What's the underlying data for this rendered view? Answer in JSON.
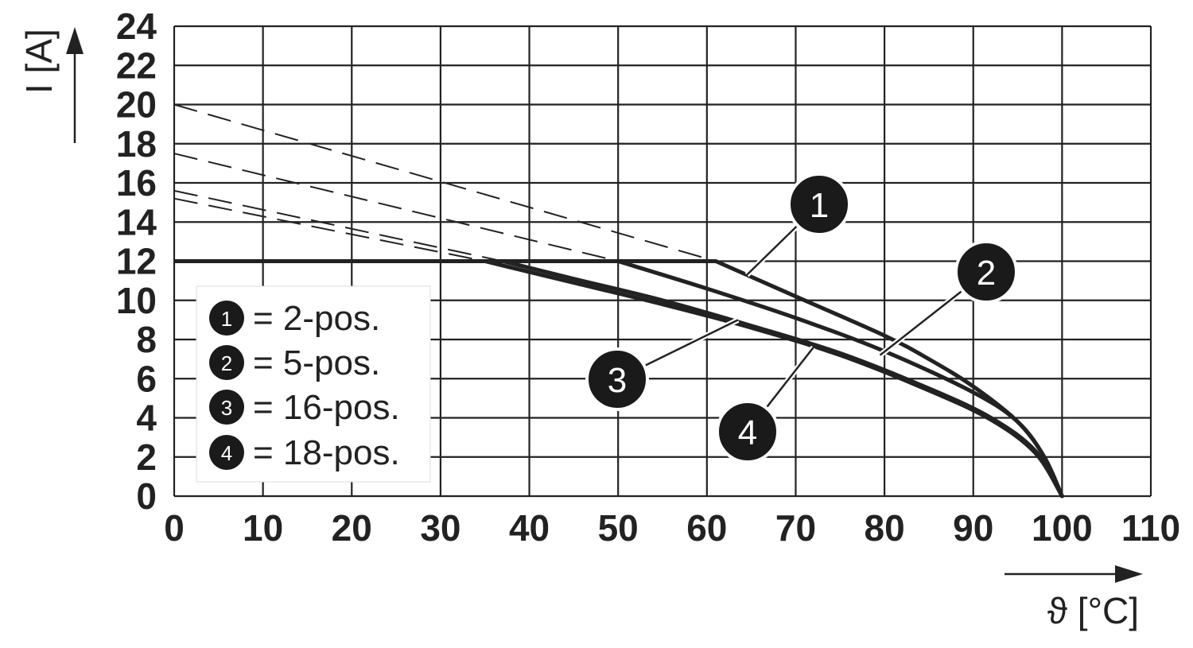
{
  "chart_data": {
    "type": "line",
    "xlabel": "ϑ [°C]",
    "ylabel": "I [A]",
    "xlim": [
      0,
      110
    ],
    "ylim": [
      0,
      24
    ],
    "xticks": [
      "0",
      "10",
      "20",
      "30",
      "40",
      "50",
      "60",
      "70",
      "80",
      "90",
      "100",
      "110"
    ],
    "yticks": [
      "0",
      "2",
      "4",
      "6",
      "8",
      "10",
      "12",
      "14",
      "16",
      "18",
      "20",
      "22",
      "24"
    ],
    "grid": true,
    "legend_position": "bottom-left",
    "colors": {
      "line": "#222222",
      "grid": "#222222",
      "background": "#ffffff"
    },
    "series": [
      {
        "marker": "1",
        "label": "= 2-pos.",
        "x": [
          0,
          61,
          70,
          80,
          85,
          90,
          95,
          98,
          100
        ],
        "y": [
          12,
          12,
          10.2,
          8.2,
          7.0,
          5.6,
          3.8,
          2.0,
          0
        ],
        "dashed_x": [
          0,
          61
        ],
        "dashed_y": [
          20,
          12
        ]
      },
      {
        "marker": "2",
        "label": "= 5-pos.",
        "x": [
          0,
          50,
          60,
          70,
          80,
          90,
          95,
          98,
          100
        ],
        "y": [
          12,
          12,
          10.6,
          9.1,
          7.4,
          5.3,
          3.8,
          2.0,
          0
        ],
        "dashed_x": [
          0,
          50
        ],
        "dashed_y": [
          17.5,
          12
        ]
      },
      {
        "marker": "3",
        "label": "= 16-pos.",
        "x": [
          0,
          37,
          45,
          55,
          65,
          75,
          85,
          92,
          97,
          100
        ],
        "y": [
          12,
          12,
          11.1,
          10.0,
          8.7,
          7.3,
          5.5,
          4.0,
          2.3,
          0
        ],
        "dashed_x": [
          0,
          37
        ],
        "dashed_y": [
          15.6,
          12
        ]
      },
      {
        "marker": "4",
        "label": "= 18-pos.",
        "x": [
          0,
          35,
          45,
          55,
          65,
          75,
          85,
          92,
          97,
          100
        ],
        "y": [
          12,
          12,
          10.9,
          9.8,
          8.6,
          7.2,
          5.4,
          3.9,
          2.2,
          0
        ],
        "dashed_x": [
          0,
          35
        ],
        "dashed_y": [
          15.2,
          12
        ]
      }
    ]
  }
}
